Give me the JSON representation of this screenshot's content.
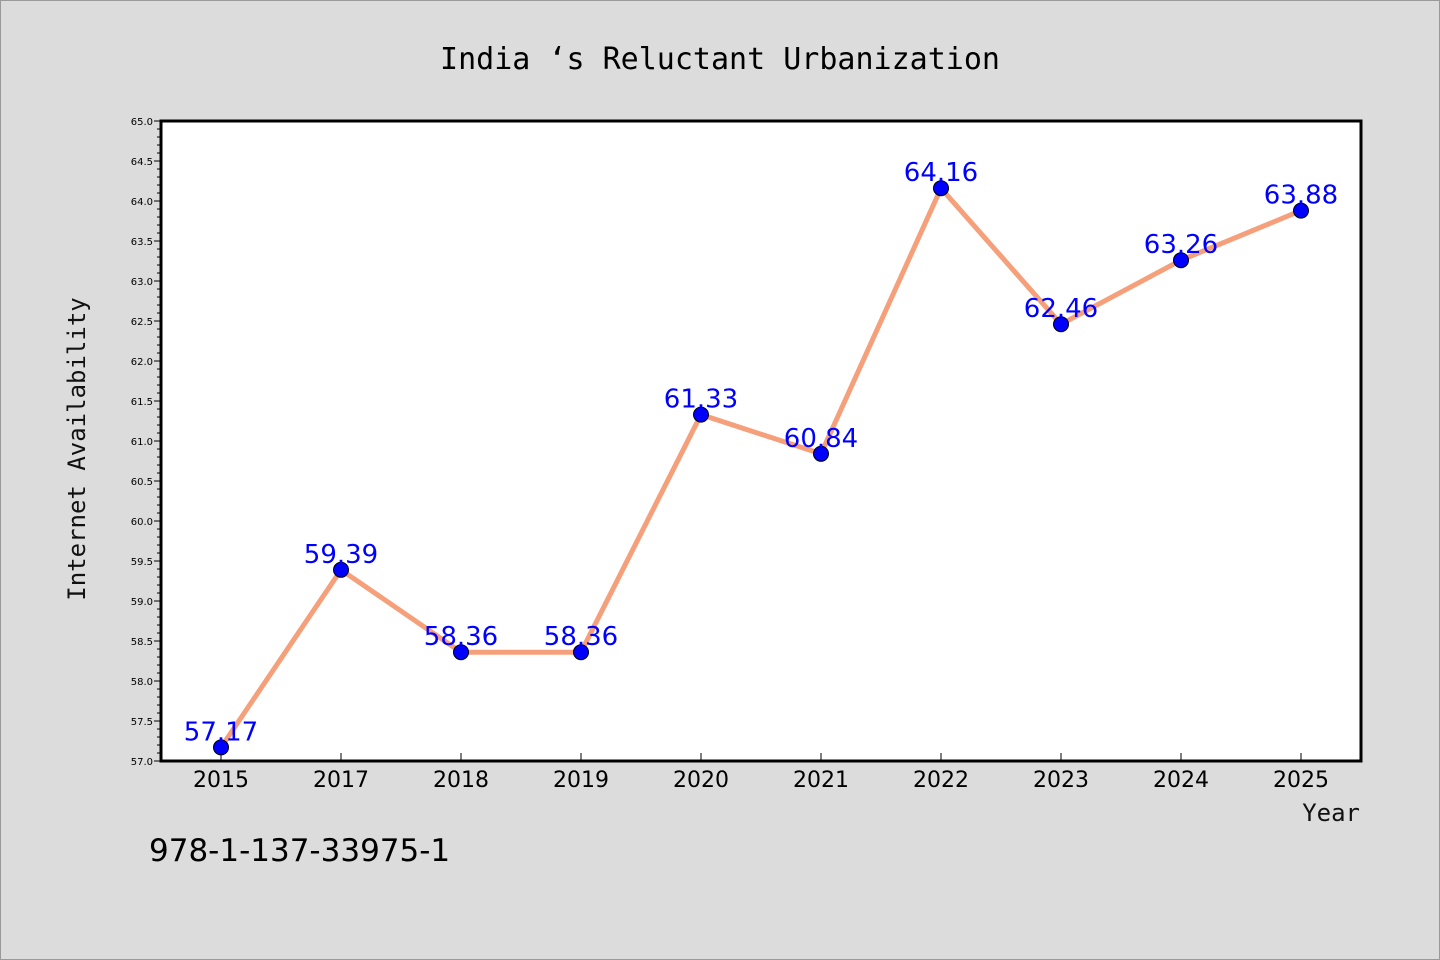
{
  "chart_data": {
    "type": "line",
    "title": "India ‘s Reluctant Urbanization",
    "xlabel": "Year",
    "ylabel": "Internet Availability",
    "categories": [
      "2015",
      "2017",
      "2018",
      "2019",
      "2020",
      "2021",
      "2022",
      "2023",
      "2024",
      "2025"
    ],
    "series": [
      {
        "values": [
          57.17,
          59.39,
          58.36,
          58.36,
          61.33,
          60.84,
          64.16,
          62.46,
          63.26,
          63.88
        ],
        "line_color": "#f5a07a",
        "marker_color": "#0000ff"
      }
    ],
    "data_labels": [
      "57.17",
      "59.39",
      "58.36",
      "58.36",
      "61.33",
      "60.84",
      "64.16",
      "62.46",
      "63.26",
      "63.88"
    ],
    "ylim": [
      57.0,
      65.0
    ],
    "yticks": [
      "57.0",
      "57.5",
      "58.0",
      "58.5",
      "59.0",
      "59.5",
      "60.0",
      "60.5",
      "61.0",
      "61.5",
      "62.0",
      "62.5",
      "63.0",
      "63.5",
      "64.0",
      "64.5",
      "65.0"
    ],
    "grid": false,
    "label_color": "#0000ff",
    "background": "#dcdcdc",
    "plot_background": "#ffffff"
  },
  "footer": {
    "code": "978-1-137-33975-1"
  }
}
